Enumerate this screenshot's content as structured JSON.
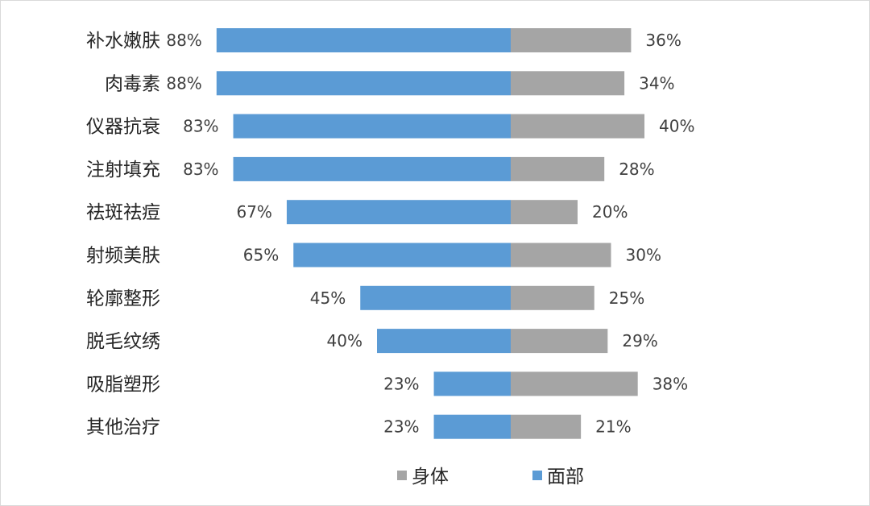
{
  "chart_data": {
    "type": "bar",
    "orientation": "horizontal-diverging",
    "categories": [
      "补水嫩肤",
      "肉毒素",
      "仪器抗衰",
      "注射填充",
      "祛斑祛痘",
      "射频美肤",
      "轮廓整形",
      "脱毛纹绣",
      "吸脂塑形",
      "其他治疗"
    ],
    "series": [
      {
        "name": "面部",
        "color": "#5b9bd5",
        "values": [
          88,
          88,
          83,
          83,
          67,
          65,
          45,
          40,
          23,
          23
        ]
      },
      {
        "name": "身体",
        "color": "#a5a5a5",
        "values": [
          36,
          34,
          40,
          28,
          20,
          30,
          25,
          29,
          38,
          21
        ]
      }
    ],
    "unit": "%",
    "grid": false,
    "legend_position": "bottom",
    "legend": {
      "items": [
        {
          "name": "身体",
          "color": "#a5a5a5"
        },
        {
          "name": "面部",
          "color": "#5b9bd5"
        }
      ]
    }
  }
}
